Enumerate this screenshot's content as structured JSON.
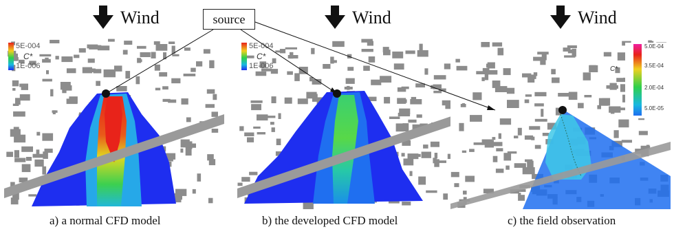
{
  "wind_label": "Wind",
  "source_label": "source",
  "panels": [
    {
      "caption": "a) a normal CFD model",
      "legend_max": "5E-004",
      "legend_min": "1E-006",
      "legend_var": "C*"
    },
    {
      "caption": "b) the developed  CFD model",
      "legend_max": "5E-004",
      "legend_min": "1E-006",
      "legend_var": "C*"
    },
    {
      "caption": "c) the field observation",
      "legend_var": "C*",
      "legend_ticks": [
        "5.0E-04",
        "3.5E-04",
        "2.0E-04",
        "5.0E-05"
      ]
    }
  ],
  "colors": {
    "building": "#8c8c8c",
    "road": "#9a9a9a",
    "plume_low": "#1e2ef0",
    "plume_high": "#e8231a"
  }
}
